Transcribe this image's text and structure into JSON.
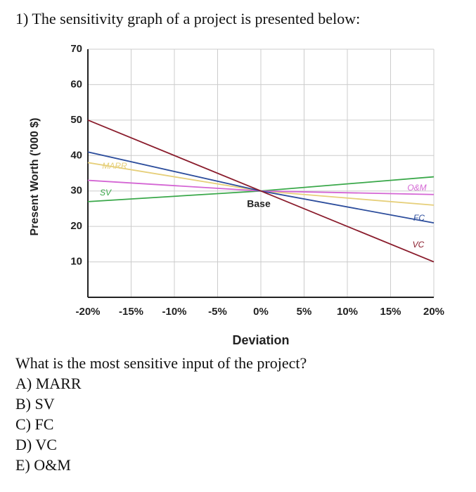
{
  "question": "1) The sensitivity graph of a project is presented below:",
  "chart_data": {
    "type": "line",
    "y_label": "Present Worth ('000 $)",
    "x_label": "Deviation",
    "annotation": "Base",
    "x": [
      -20,
      0,
      20
    ],
    "xlim": [
      -20,
      20
    ],
    "xticks": [
      {
        "value": -20,
        "label": "-20%"
      },
      {
        "value": -15,
        "label": "-15%"
      },
      {
        "value": -10,
        "label": "-10%"
      },
      {
        "value": -5,
        "label": "-5%"
      },
      {
        "value": 0,
        "label": "0%"
      },
      {
        "value": 5,
        "label": "5%"
      },
      {
        "value": 10,
        "label": "10%"
      },
      {
        "value": 15,
        "label": "15%"
      },
      {
        "value": 20,
        "label": "20%"
      }
    ],
    "ylim": [
      0,
      70
    ],
    "yticks": [
      10,
      20,
      30,
      40,
      50,
      60,
      70
    ],
    "grid": true,
    "series": [
      {
        "name": "MARR",
        "color": "#e6cf7a",
        "values": [
          38,
          30,
          26
        ]
      },
      {
        "name": "SV",
        "color": "#3aa84a",
        "values": [
          27,
          30,
          34
        ]
      },
      {
        "name": "O&M",
        "color": "#d466d4",
        "values": [
          33,
          30,
          29
        ]
      },
      {
        "name": "FC",
        "color": "#2c4d9c",
        "values": [
          41,
          30,
          21
        ]
      },
      {
        "name": "VC",
        "color": "#8a1c2c",
        "values": [
          50,
          30,
          10
        ]
      }
    ]
  },
  "prompt": "What is the most sensitive input of the project?",
  "options": [
    "A) MARR",
    "B) SV",
    "C) FC",
    "D) VC",
    "E) O&M"
  ]
}
